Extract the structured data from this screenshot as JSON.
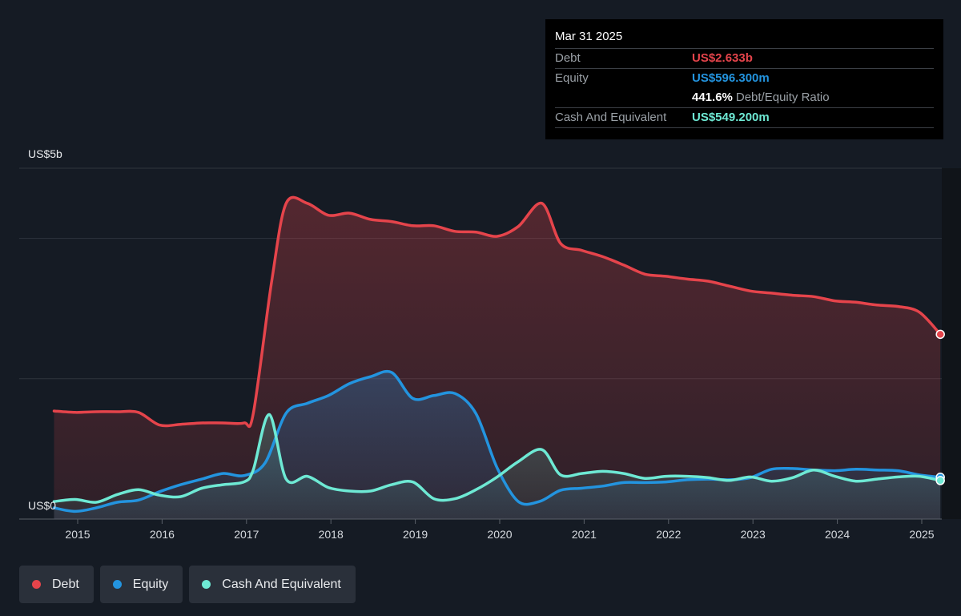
{
  "tooltip": {
    "date": "Mar 31 2025",
    "debt_label": "Debt",
    "debt_value": "US$2.633b",
    "equity_label": "Equity",
    "equity_value": "US$596.300m",
    "ratio_value": "441.6%",
    "ratio_label": "Debt/Equity Ratio",
    "cash_label": "Cash And Equivalent",
    "cash_value": "US$549.200m"
  },
  "colors": {
    "debt": "#e5444b",
    "equity": "#2394df",
    "cash": "#6ee9d4"
  },
  "legend": [
    {
      "label": "Debt",
      "color": "#e5444b"
    },
    {
      "label": "Equity",
      "color": "#2394df"
    },
    {
      "label": "Cash And Equivalent",
      "color": "#6ee9d4"
    }
  ],
  "chart_data": {
    "type": "area",
    "y_top_label": "US$5b",
    "y_bottom_label": "US$0",
    "ylim": [
      0,
      5.0
    ],
    "xlim": [
      2014.72,
      2025.25
    ],
    "x_ticks": [
      "2015",
      "2016",
      "2017",
      "2018",
      "2019",
      "2020",
      "2021",
      "2022",
      "2023",
      "2024",
      "2025"
    ],
    "grid": true,
    "series": [
      {
        "name": "Debt",
        "unit": "US$b",
        "points": [
          [
            2014.72,
            1.54
          ],
          [
            2014.97,
            1.52
          ],
          [
            2015.22,
            1.53
          ],
          [
            2015.47,
            1.53
          ],
          [
            2015.72,
            1.52
          ],
          [
            2015.97,
            1.34
          ],
          [
            2016.22,
            1.35
          ],
          [
            2016.47,
            1.37
          ],
          [
            2016.72,
            1.37
          ],
          [
            2016.97,
            1.37
          ],
          [
            2017.08,
            1.5
          ],
          [
            2017.3,
            3.4
          ],
          [
            2017.47,
            4.5
          ],
          [
            2017.72,
            4.5
          ],
          [
            2017.97,
            4.33
          ],
          [
            2018.22,
            4.36
          ],
          [
            2018.47,
            4.27
          ],
          [
            2018.72,
            4.24
          ],
          [
            2018.97,
            4.18
          ],
          [
            2019.22,
            4.18
          ],
          [
            2019.47,
            4.1
          ],
          [
            2019.72,
            4.09
          ],
          [
            2019.97,
            4.03
          ],
          [
            2020.22,
            4.17
          ],
          [
            2020.5,
            4.5
          ],
          [
            2020.72,
            3.93
          ],
          [
            2020.97,
            3.83
          ],
          [
            2021.22,
            3.74
          ],
          [
            2021.47,
            3.62
          ],
          [
            2021.72,
            3.49
          ],
          [
            2021.97,
            3.46
          ],
          [
            2022.22,
            3.42
          ],
          [
            2022.47,
            3.39
          ],
          [
            2022.72,
            3.32
          ],
          [
            2022.97,
            3.25
          ],
          [
            2023.22,
            3.22
          ],
          [
            2023.47,
            3.19
          ],
          [
            2023.72,
            3.17
          ],
          [
            2023.97,
            3.11
          ],
          [
            2024.22,
            3.09
          ],
          [
            2024.47,
            3.05
          ],
          [
            2024.72,
            3.03
          ],
          [
            2024.97,
            2.95
          ],
          [
            2025.22,
            2.633
          ]
        ]
      },
      {
        "name": "Equity",
        "unit": "US$b",
        "points": [
          [
            2014.72,
            0.16
          ],
          [
            2014.97,
            0.11
          ],
          [
            2015.22,
            0.16
          ],
          [
            2015.47,
            0.24
          ],
          [
            2015.72,
            0.27
          ],
          [
            2015.97,
            0.39
          ],
          [
            2016.22,
            0.49
          ],
          [
            2016.47,
            0.57
          ],
          [
            2016.72,
            0.65
          ],
          [
            2016.97,
            0.62
          ],
          [
            2017.22,
            0.8
          ],
          [
            2017.47,
            1.51
          ],
          [
            2017.72,
            1.65
          ],
          [
            2017.97,
            1.76
          ],
          [
            2018.22,
            1.93
          ],
          [
            2018.47,
            2.03
          ],
          [
            2018.72,
            2.09
          ],
          [
            2018.97,
            1.72
          ],
          [
            2019.22,
            1.76
          ],
          [
            2019.47,
            1.79
          ],
          [
            2019.72,
            1.5
          ],
          [
            2019.97,
            0.73
          ],
          [
            2020.22,
            0.25
          ],
          [
            2020.47,
            0.25
          ],
          [
            2020.72,
            0.41
          ],
          [
            2020.97,
            0.44
          ],
          [
            2021.22,
            0.47
          ],
          [
            2021.47,
            0.52
          ],
          [
            2021.72,
            0.52
          ],
          [
            2021.97,
            0.53
          ],
          [
            2022.22,
            0.56
          ],
          [
            2022.47,
            0.57
          ],
          [
            2022.72,
            0.56
          ],
          [
            2022.97,
            0.59
          ],
          [
            2023.22,
            0.71
          ],
          [
            2023.47,
            0.72
          ],
          [
            2023.72,
            0.7
          ],
          [
            2023.97,
            0.69
          ],
          [
            2024.22,
            0.71
          ],
          [
            2024.47,
            0.7
          ],
          [
            2024.72,
            0.69
          ],
          [
            2024.97,
            0.63
          ],
          [
            2025.22,
            0.5963
          ]
        ]
      },
      {
        "name": "Cash And Equivalent",
        "unit": "US$b",
        "points": [
          [
            2014.72,
            0.25
          ],
          [
            2014.97,
            0.28
          ],
          [
            2015.22,
            0.24
          ],
          [
            2015.47,
            0.35
          ],
          [
            2015.72,
            0.42
          ],
          [
            2015.97,
            0.34
          ],
          [
            2016.22,
            0.32
          ],
          [
            2016.47,
            0.44
          ],
          [
            2016.72,
            0.49
          ],
          [
            2016.97,
            0.53
          ],
          [
            2017.08,
            0.7
          ],
          [
            2017.27,
            1.49
          ],
          [
            2017.47,
            0.57
          ],
          [
            2017.72,
            0.61
          ],
          [
            2017.97,
            0.45
          ],
          [
            2018.22,
            0.4
          ],
          [
            2018.47,
            0.4
          ],
          [
            2018.72,
            0.49
          ],
          [
            2018.97,
            0.53
          ],
          [
            2019.22,
            0.29
          ],
          [
            2019.47,
            0.29
          ],
          [
            2019.72,
            0.42
          ],
          [
            2019.97,
            0.6
          ],
          [
            2020.22,
            0.82
          ],
          [
            2020.5,
            0.99
          ],
          [
            2020.72,
            0.63
          ],
          [
            2020.97,
            0.65
          ],
          [
            2021.22,
            0.68
          ],
          [
            2021.47,
            0.65
          ],
          [
            2021.72,
            0.58
          ],
          [
            2021.97,
            0.61
          ],
          [
            2022.22,
            0.61
          ],
          [
            2022.47,
            0.59
          ],
          [
            2022.72,
            0.55
          ],
          [
            2022.97,
            0.6
          ],
          [
            2023.22,
            0.54
          ],
          [
            2023.47,
            0.59
          ],
          [
            2023.72,
            0.7
          ],
          [
            2023.97,
            0.61
          ],
          [
            2024.22,
            0.54
          ],
          [
            2024.47,
            0.57
          ],
          [
            2024.72,
            0.6
          ],
          [
            2024.97,
            0.61
          ],
          [
            2025.22,
            0.5492
          ]
        ]
      }
    ]
  }
}
